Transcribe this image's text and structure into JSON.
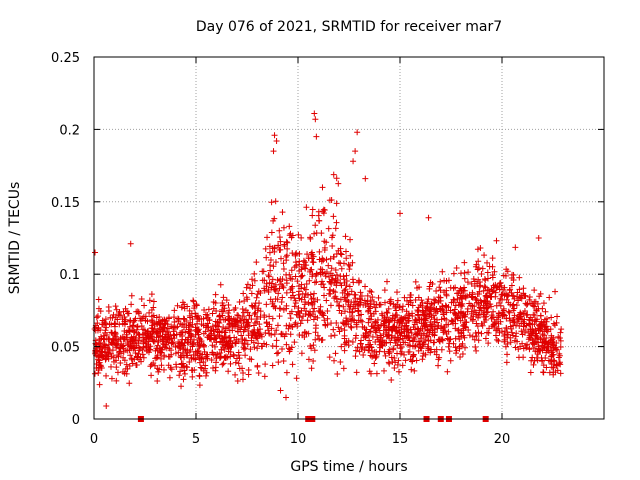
{
  "chart_data": {
    "type": "scatter",
    "title": "Day 076 of 2021, SRMTID for receiver mar7",
    "xlabel": "GPS time / hours",
    "ylabel": "SRMTID / TECUs",
    "xlim": [
      0,
      25
    ],
    "ylim": [
      0,
      0.25
    ],
    "xticks": [
      "0",
      "5",
      "10",
      "15",
      "20"
    ],
    "yticks": [
      "0",
      "0.05",
      "0.1",
      "0.15",
      "0.2",
      "0.25"
    ],
    "grid": true,
    "marker": "+",
    "color": "#e00000",
    "x_extent": [
      0,
      22.9
    ],
    "trend_hours": [
      0,
      1,
      2,
      3,
      4,
      5,
      6,
      7,
      8,
      8.5,
      9,
      10,
      10.5,
      11,
      12,
      12.5,
      13,
      14,
      15,
      16,
      17,
      18,
      19,
      20,
      21,
      22,
      22.9
    ],
    "trend_values": [
      0.055,
      0.052,
      0.055,
      0.056,
      0.055,
      0.055,
      0.058,
      0.058,
      0.065,
      0.085,
      0.09,
      0.085,
      0.09,
      0.095,
      0.095,
      0.08,
      0.065,
      0.06,
      0.062,
      0.065,
      0.068,
      0.075,
      0.08,
      0.08,
      0.07,
      0.055,
      0.045
    ],
    "spread_values": [
      0.012,
      0.013,
      0.012,
      0.012,
      0.012,
      0.013,
      0.012,
      0.013,
      0.018,
      0.03,
      0.028,
      0.022,
      0.025,
      0.03,
      0.028,
      0.02,
      0.015,
      0.013,
      0.014,
      0.014,
      0.015,
      0.016,
      0.016,
      0.016,
      0.015,
      0.012,
      0.01
    ],
    "outliers": [
      {
        "x": 0.05,
        "y": 0.115
      },
      {
        "x": 1.8,
        "y": 0.121
      },
      {
        "x": 0.6,
        "y": 0.009
      },
      {
        "x": 8.85,
        "y": 0.196
      },
      {
        "x": 8.95,
        "y": 0.192
      },
      {
        "x": 8.8,
        "y": 0.185
      },
      {
        "x": 10.8,
        "y": 0.211
      },
      {
        "x": 10.85,
        "y": 0.207
      },
      {
        "x": 10.9,
        "y": 0.195
      },
      {
        "x": 11.2,
        "y": 0.16
      },
      {
        "x": 12.9,
        "y": 0.198
      },
      {
        "x": 12.8,
        "y": 0.185
      },
      {
        "x": 12.7,
        "y": 0.178
      },
      {
        "x": 13.3,
        "y": 0.166
      },
      {
        "x": 15.0,
        "y": 0.142
      },
      {
        "x": 16.4,
        "y": 0.139
      },
      {
        "x": 21.8,
        "y": 0.125
      },
      {
        "x": 22.6,
        "y": 0.088
      }
    ],
    "gap_markers_hours": [
      2.3,
      10.5,
      10.7,
      16.3,
      17.0,
      17.4,
      19.2
    ]
  }
}
